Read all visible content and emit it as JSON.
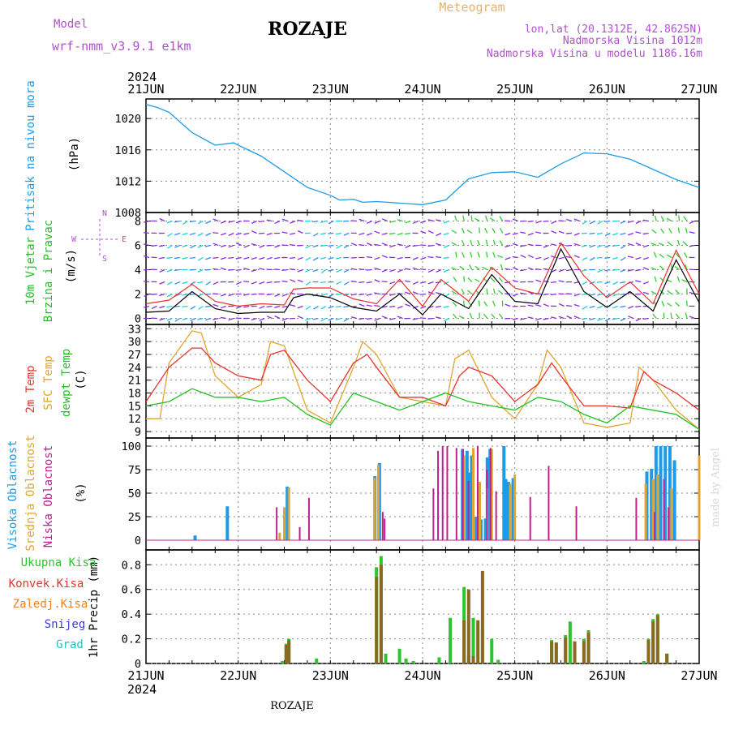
{
  "header": {
    "model_label": "Model",
    "model_name": "wrf-nmm_v3.9.1 e1km",
    "station_title": "ROZAJE",
    "product": "Meteogram",
    "lonlat": "lon,lat (20.1312E, 42.8625N)",
    "elev": "Nadmorska Visina 1012m",
    "elev_model": "Nadmorska Visina u modelu 1186.16m",
    "footer_station": "ROZAJE",
    "credit": "made by Angel"
  },
  "time_axis": {
    "year": "2024",
    "ticks": [
      "21JUN",
      "22JUN",
      "23JUN",
      "24JUN",
      "25JUN",
      "26JUN",
      "27JUN"
    ]
  },
  "colors": {
    "pressure": "#1e9be6",
    "wind_speed": "#000000",
    "wind_gust": "#e8322d",
    "temp2m": "#e8322d",
    "sfc_temp": "#e0a530",
    "dewpt": "#22c022",
    "cloud_high": "#1e9be6",
    "cloud_mid": "#e0a530",
    "cloud_low": "#c0208f",
    "precip_total": "#2cc52c",
    "precip_conv": "#e8322d",
    "precip_frozen": "#f08020",
    "precip_snow": "#3a3ae0",
    "precip_hail": "#22c0c0",
    "label_purple": "#b050d0",
    "label_orange": "#e8b070"
  },
  "chart_data": [
    {
      "type": "line",
      "panel": "pressure",
      "ylabel_left": "Pritisak na nivou mora",
      "unit": "(hPa)",
      "yticks": [
        "1008",
        "1012",
        "1016",
        "1020"
      ],
      "ylim": [
        1008,
        1022.5
      ],
      "series": [
        {
          "x": [
            0,
            0.125,
            0.25,
            0.5,
            0.75,
            0.95,
            1.0,
            1.25,
            1.5,
            1.75,
            2.0,
            2.1,
            2.25,
            2.35,
            2.5,
            2.75,
            3.0,
            3.25,
            3.5,
            3.75,
            4.0,
            4.25,
            4.5,
            4.75,
            5.0,
            5.25,
            5.5,
            5.75,
            6.0
          ],
          "values": [
            1021.8,
            1021.4,
            1020.8,
            1018.2,
            1016.6,
            1016.9,
            1016.6,
            1015.2,
            1013.2,
            1011.2,
            1010.2,
            1009.6,
            1009.7,
            1009.3,
            1009.4,
            1009.2,
            1009.0,
            1009.6,
            1012.3,
            1013.1,
            1013.2,
            1012.5,
            1014.2,
            1015.6,
            1015.5,
            1014.8,
            1013.5,
            1012.2,
            1011.2
          ]
        }
      ]
    },
    {
      "type": "line",
      "panel": "wind",
      "ylabel_left": [
        "10m Vjetar",
        "Brzina i Pravac"
      ],
      "unit": "(m/s)",
      "direction_legend": [
        "W",
        "E",
        "S",
        "N"
      ],
      "yticks": [
        "0",
        "2",
        "4",
        "6",
        "8"
      ],
      "ylim": [
        -0.5,
        8.7
      ],
      "series": [
        {
          "name": "speed",
          "x": [
            0,
            0.25,
            0.5,
            0.75,
            1.0,
            1.25,
            1.5,
            1.6,
            1.75,
            2.0,
            2.25,
            2.5,
            2.75,
            3.0,
            3.2,
            3.5,
            3.75,
            4.0,
            4.25,
            4.5,
            4.75,
            5.0,
            5.25,
            5.5,
            5.75,
            6.0
          ],
          "values": [
            0.5,
            0.6,
            2.2,
            0.8,
            0.4,
            0.5,
            0.5,
            1.7,
            2.0,
            1.7,
            0.9,
            0.6,
            2.0,
            0.3,
            2.0,
            0.8,
            3.6,
            1.4,
            1.2,
            5.7,
            2.2,
            0.9,
            2.2,
            0.6,
            4.8,
            1.3
          ]
        },
        {
          "name": "gust",
          "x": [
            0,
            0.25,
            0.5,
            0.75,
            1.0,
            1.25,
            1.5,
            1.6,
            1.75,
            2.0,
            2.25,
            2.5,
            2.75,
            3.0,
            3.2,
            3.5,
            3.75,
            4.0,
            4.25,
            4.5,
            4.75,
            5.0,
            5.25,
            5.5,
            5.75,
            6.0
          ],
          "values": [
            1.2,
            1.5,
            2.8,
            1.4,
            1.0,
            1.2,
            1.1,
            2.4,
            2.5,
            2.5,
            1.6,
            1.2,
            3.2,
            1.0,
            3.2,
            1.4,
            4.2,
            2.5,
            2.0,
            6.2,
            3.5,
            1.7,
            3.0,
            1.2,
            5.6,
            2.0
          ]
        }
      ]
    },
    {
      "type": "line",
      "panel": "temperature",
      "ylabel_left": [
        "2m Temp",
        "SFC Temp",
        "dewpt Temp"
      ],
      "unit": "(C)",
      "yticks": [
        "9",
        "12",
        "15",
        "18",
        "21",
        "24",
        "27",
        "30",
        "33"
      ],
      "ylim": [
        7.5,
        34
      ],
      "series": [
        {
          "name": "2m Temp",
          "x": [
            0,
            0.25,
            0.5,
            0.6,
            0.75,
            1.0,
            1.25,
            1.35,
            1.5,
            1.75,
            2.0,
            2.25,
            2.4,
            2.5,
            2.75,
            3.0,
            3.25,
            3.4,
            3.5,
            3.75,
            4.0,
            4.25,
            4.4,
            4.5,
            4.75,
            5.0,
            5.25,
            5.4,
            5.5,
            5.75,
            6.0
          ],
          "values": [
            16,
            24,
            28.5,
            28.5,
            25,
            22,
            21,
            27,
            28,
            21,
            16,
            25,
            27,
            24,
            17,
            17,
            15,
            22,
            24,
            22,
            16,
            20,
            25,
            22,
            15,
            15,
            14.5,
            23,
            21,
            18,
            14
          ]
        },
        {
          "name": "SFC Temp",
          "x": [
            0,
            0.15,
            0.25,
            0.5,
            0.6,
            0.75,
            1.0,
            1.25,
            1.35,
            1.5,
            1.75,
            2.0,
            2.25,
            2.35,
            2.5,
            2.75,
            3.0,
            3.25,
            3.35,
            3.5,
            3.75,
            4.0,
            4.25,
            4.35,
            4.5,
            4.75,
            5.0,
            5.25,
            5.35,
            5.5,
            5.75,
            6.0
          ],
          "values": [
            12,
            12,
            25,
            32.5,
            32,
            22,
            17,
            20,
            30,
            29,
            14,
            11,
            24,
            30,
            27,
            17,
            16,
            15,
            26,
            28,
            17,
            12,
            20,
            28,
            24,
            11,
            10,
            11,
            24,
            21,
            14,
            9.5
          ]
        },
        {
          "name": "dewpt Temp",
          "x": [
            0,
            0.25,
            0.5,
            0.75,
            1.0,
            1.25,
            1.5,
            1.75,
            2.0,
            2.25,
            2.5,
            2.75,
            3.0,
            3.25,
            3.5,
            3.75,
            4.0,
            4.25,
            4.5,
            4.75,
            5.0,
            5.25,
            5.5,
            5.75,
            6.0
          ],
          "values": [
            15,
            16,
            19,
            17,
            17,
            16,
            17,
            13,
            10.5,
            18,
            16,
            14,
            16,
            18,
            16,
            15,
            14,
            17,
            16,
            13,
            11,
            15,
            14,
            13,
            9.5
          ]
        }
      ]
    },
    {
      "type": "bar",
      "panel": "cloud",
      "ylabel_left": [
        "Visoka Oblacnost",
        "Srednja Oblacnost",
        "Niska Oblacnost"
      ],
      "unit": "(%)",
      "yticks": [
        "0",
        "25",
        "50",
        "75",
        "100"
      ],
      "ylim": [
        0,
        100
      ],
      "series": [
        {
          "name": "Visoka Oblacnost",
          "x": [
            0.55,
            0.9,
            1.55,
            2.5,
            2.55,
            3.45,
            3.5,
            3.52,
            3.55,
            3.6,
            3.62,
            3.65,
            3.7,
            3.72,
            3.75,
            3.9,
            3.92,
            3.95,
            4.0,
            5.45,
            5.5,
            5.55,
            5.6,
            5.65,
            5.7,
            5.75
          ],
          "values": [
            5,
            36,
            57,
            68,
            82,
            97,
            95,
            72,
            90,
            25,
            24,
            22,
            23,
            88,
            97,
            100,
            65,
            62,
            66,
            73,
            76,
            100,
            100,
            100,
            100,
            85
          ]
        },
        {
          "name": "Srednja Oblacnost",
          "x": [
            1.45,
            1.5,
            1.55,
            2.48,
            2.52,
            3.45,
            3.55,
            3.62,
            3.7,
            3.75,
            3.95,
            4.0,
            5.42,
            5.5,
            5.55,
            5.7,
            6.0
          ],
          "values": [
            8,
            35,
            56,
            66,
            80,
            90,
            98,
            62,
            55,
            97,
            60,
            70,
            60,
            65,
            70,
            55,
            90
          ]
        },
        {
          "name": "Niska Oblacnost",
          "x": [
            1.4,
            1.65,
            1.75,
            2.55,
            2.57,
            3.1,
            3.15,
            3.2,
            3.25,
            3.35,
            3.42,
            3.48,
            3.58,
            3.68,
            3.72,
            3.78,
            4.15,
            4.35,
            4.65,
            5.3,
            5.5,
            5.6,
            5.65
          ],
          "values": [
            35,
            14,
            45,
            30,
            23,
            55,
            95,
            100,
            100,
            98,
            97,
            63,
            100,
            75,
            98,
            52,
            46,
            79,
            36,
            45,
            30,
            65,
            35
          ]
        }
      ]
    },
    {
      "type": "bar",
      "panel": "precip",
      "ylabel_left": [
        "Ukupna Kisa",
        "Konvek.Kisa",
        "Zaledj.Kisa",
        "Snijeg",
        "Grad"
      ],
      "unit": "1hr Precip (mm)",
      "yticks": [
        "0",
        "0.2",
        "0.4",
        "0.6",
        "0.8"
      ],
      "ylim": [
        0,
        0.92
      ],
      "series": [
        {
          "name": "Ukupna Kisa",
          "x": [
            1.48,
            1.52,
            1.55,
            1.85,
            2.5,
            2.55,
            2.6,
            2.75,
            2.82,
            2.9,
            3.18,
            3.3,
            3.45,
            3.5,
            3.55,
            3.65,
            3.75,
            3.82,
            4.4,
            4.45,
            4.55,
            4.6,
            4.75,
            4.8,
            5.4,
            5.45,
            5.5,
            5.55,
            5.65
          ],
          "values": [
            0.02,
            0.16,
            0.2,
            0.04,
            0.78,
            0.87,
            0.08,
            0.12,
            0.04,
            0.02,
            0.05,
            0.37,
            0.62,
            0.07,
            0.37,
            0.28,
            0.2,
            0.03,
            0.19,
            0.17,
            0.23,
            0.34,
            0.2,
            0.27,
            0.02,
            0.2,
            0.36,
            0.4,
            0.08
          ]
        },
        {
          "name": "Konvek.Kisa",
          "x": [
            1.52,
            1.55,
            2.5,
            2.55,
            3.45,
            3.5,
            3.55,
            3.6,
            3.65,
            4.4,
            4.45,
            4.55,
            4.65,
            4.75,
            4.8,
            5.45,
            5.5,
            5.55,
            5.65
          ],
          "values": [
            0.15,
            0.19,
            0.7,
            0.8,
            0.35,
            0.6,
            0.06,
            0.35,
            0.75,
            0.18,
            0.17,
            0.21,
            0.18,
            0.18,
            0.25,
            0.19,
            0.34,
            0.39,
            0.08
          ]
        }
      ]
    }
  ]
}
